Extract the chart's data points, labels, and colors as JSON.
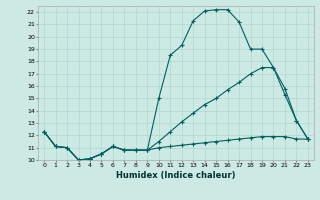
{
  "xlabel": "Humidex (Indice chaleur)",
  "background_color": "#cce9e4",
  "grid_color": "#b0d8d0",
  "line_color": "#006060",
  "xlim": [
    -0.5,
    23.5
  ],
  "ylim": [
    10,
    22.5
  ],
  "xticks": [
    0,
    1,
    2,
    3,
    4,
    5,
    6,
    7,
    8,
    9,
    10,
    11,
    12,
    13,
    14,
    15,
    16,
    17,
    18,
    19,
    20,
    21,
    22,
    23
  ],
  "yticks": [
    10,
    11,
    12,
    13,
    14,
    15,
    16,
    17,
    18,
    19,
    20,
    21,
    22
  ],
  "line1_x": [
    0,
    1,
    2,
    3,
    4,
    5,
    6,
    7,
    8,
    9,
    10,
    11,
    12,
    13,
    14,
    15,
    16,
    17,
    18,
    19,
    20,
    21,
    22,
    23
  ],
  "line1_y": [
    12.3,
    11.1,
    11.0,
    10.0,
    10.1,
    10.5,
    11.1,
    10.8,
    10.8,
    10.8,
    15.0,
    18.5,
    19.3,
    21.3,
    22.1,
    22.2,
    22.2,
    21.2,
    19.0,
    19.0,
    17.5,
    15.3,
    13.2,
    11.7
  ],
  "line2_x": [
    0,
    1,
    2,
    3,
    4,
    5,
    6,
    7,
    8,
    9,
    10,
    11,
    12,
    13,
    14,
    15,
    16,
    17,
    18,
    19,
    20,
    21,
    22,
    23
  ],
  "line2_y": [
    12.3,
    11.1,
    11.0,
    10.0,
    10.1,
    10.5,
    11.1,
    10.8,
    10.8,
    10.8,
    11.0,
    11.1,
    11.2,
    11.3,
    11.4,
    11.5,
    11.6,
    11.7,
    11.8,
    11.9,
    11.9,
    11.9,
    11.7,
    11.7
  ],
  "line3_x": [
    0,
    1,
    2,
    3,
    4,
    5,
    6,
    7,
    8,
    9,
    10,
    11,
    12,
    13,
    14,
    15,
    16,
    17,
    18,
    19,
    20,
    21,
    22,
    23
  ],
  "line3_y": [
    12.3,
    11.1,
    11.0,
    10.0,
    10.1,
    10.5,
    11.1,
    10.8,
    10.8,
    10.8,
    11.5,
    12.3,
    13.1,
    13.8,
    14.5,
    15.0,
    15.7,
    16.3,
    17.0,
    17.5,
    17.5,
    15.8,
    13.2,
    11.7
  ]
}
